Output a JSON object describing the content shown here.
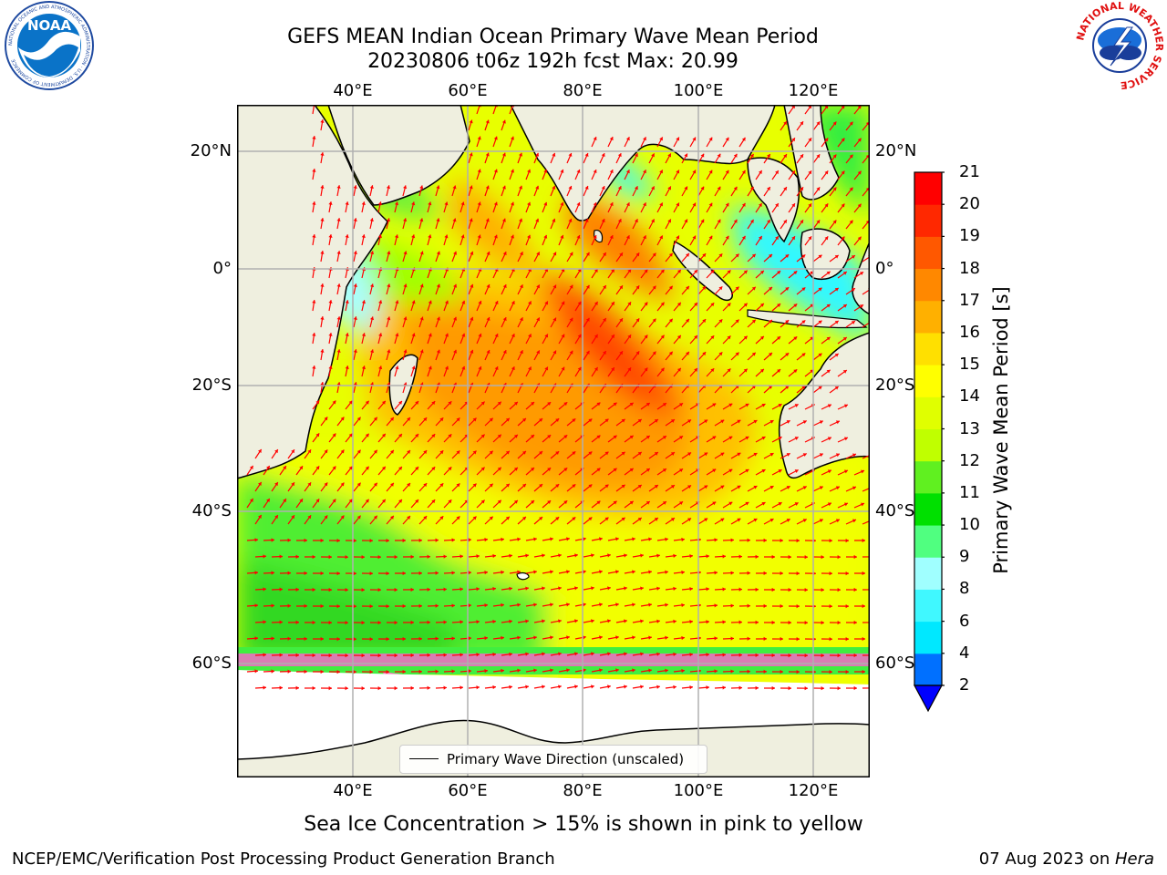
{
  "header": {
    "title_line1": "GEFS MEAN Indian Ocean Primary Wave Mean Period",
    "title_line2": "20230806 t06z 192h fcst   Max: 20.99"
  },
  "logos": {
    "noaa_text": "NOAA",
    "noaa_ring": "NATIONAL OCEANIC AND ATMOSPHERIC ADMINISTRATION · U.S. DEPARTMENT OF COMMERCE",
    "nws_ring": "NATIONAL WEATHER SERVICE"
  },
  "map": {
    "lon_labels": [
      "40°E",
      "60°E",
      "80°E",
      "100°E",
      "120°E"
    ],
    "lat_labels": [
      "20°N",
      "0°",
      "20°S",
      "40°S",
      "60°S"
    ],
    "legend_label": "Primary Wave Direction (unscaled)",
    "colors": {
      "land": "#efefdf",
      "ice_free_south": "#ffffff",
      "arrow": "#ff0000",
      "grid": "#b0b0b0"
    }
  },
  "colorbar": {
    "label": "Primary Wave Mean Period [s]",
    "ticks": [
      "2",
      "4",
      "6",
      "8",
      "9",
      "10",
      "11",
      "12",
      "13",
      "14",
      "15",
      "16",
      "17",
      "18",
      "19",
      "20",
      "21"
    ],
    "colors": [
      "#0070ff",
      "#00e8ff",
      "#40f8ff",
      "#a0ffff",
      "#50ff80",
      "#00e000",
      "#60f020",
      "#c0ff00",
      "#e0ff00",
      "#ffff00",
      "#ffe000",
      "#ffb000",
      "#ff8800",
      "#ff5800",
      "#ff2800",
      "#ff0000"
    ],
    "extend_color": "#0000ff"
  },
  "caption": "Sea Ice Concentration > 15% is shown in pink to yellow",
  "footer": {
    "left": "NCEP/EMC/Verification Post Processing Product Generation Branch",
    "date": "07 Aug 2023 on ",
    "machine": "Hera"
  }
}
